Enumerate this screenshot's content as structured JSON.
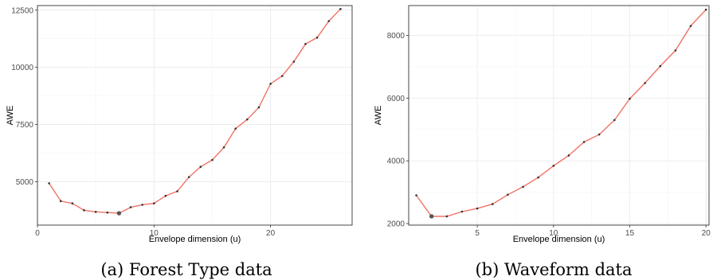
{
  "chart_data": [
    {
      "type": "line",
      "caption": "(a) Forest Type data",
      "xlabel": "Envelope dimension (u)",
      "ylabel": "AWE",
      "xlim": [
        0,
        27
      ],
      "ylim": [
        3100,
        12700
      ],
      "xticks": [
        0,
        10,
        20
      ],
      "yticks": [
        5000,
        7500,
        10000,
        12500
      ],
      "grid": true,
      "line_color": "#f07366",
      "point_color": "#333333",
      "x": [
        1,
        2,
        3,
        4,
        5,
        6,
        7,
        8,
        9,
        10,
        11,
        12,
        13,
        14,
        15,
        16,
        17,
        18,
        19,
        20,
        21,
        22,
        23,
        24,
        25,
        26
      ],
      "y": [
        4930,
        4150,
        4050,
        3750,
        3680,
        3650,
        3620,
        3880,
        3990,
        4050,
        4380,
        4580,
        5200,
        5650,
        5950,
        6500,
        7320,
        7720,
        8250,
        9280,
        9620,
        10250,
        11020,
        11300,
        12020,
        12550
      ],
      "highlight_x": 7
    },
    {
      "type": "line",
      "caption": "(b) Waveform data",
      "xlabel": "Envelope dimension (u)",
      "ylabel": "AWE",
      "xlim": [
        0.5,
        20.2
      ],
      "ylim": [
        1950,
        8950
      ],
      "xticks": [
        5,
        10,
        15,
        20
      ],
      "yticks": [
        2000,
        4000,
        6000,
        8000
      ],
      "grid": true,
      "line_color": "#f07366",
      "point_color": "#333333",
      "x": [
        1,
        2,
        3,
        4,
        5,
        6,
        7,
        8,
        9,
        10,
        11,
        12,
        13,
        14,
        15,
        16,
        17,
        18,
        19,
        20
      ],
      "y": [
        2900,
        2230,
        2230,
        2380,
        2480,
        2620,
        2920,
        3170,
        3470,
        3840,
        4170,
        4600,
        4840,
        5300,
        5980,
        6480,
        7020,
        7520,
        8300,
        8820
      ],
      "highlight_x": 2
    }
  ]
}
